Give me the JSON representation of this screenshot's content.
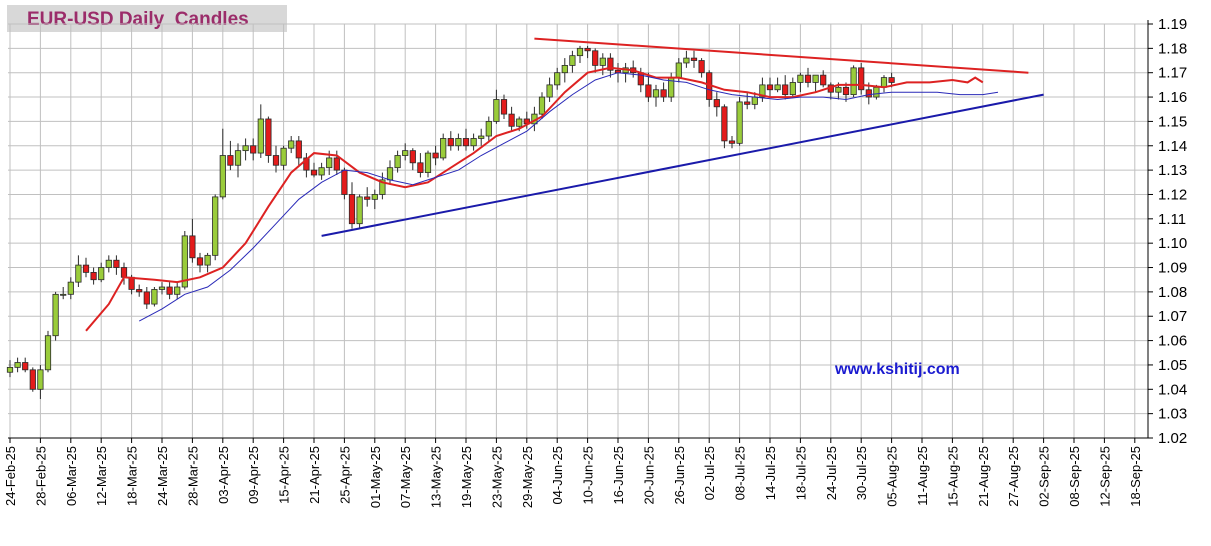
{
  "chart_data": {
    "type": "candlestick",
    "title": "EUR-USD Daily  Candles",
    "watermark": "www.kshitij.com",
    "ylim": [
      1.02,
      1.19
    ],
    "y_ticks": [
      "1.19",
      "1.18",
      "1.17",
      "1.16",
      "1.15",
      "1.14",
      "1.13",
      "1.12",
      "1.11",
      "1.10",
      "1.09",
      "1.08",
      "1.07",
      "1.06",
      "1.05",
      "1.04",
      "1.03",
      "1.02"
    ],
    "x_ticks": [
      "24-Feb-25",
      "28-Feb-25",
      "06-Mar-25",
      "12-Mar-25",
      "18-Mar-25",
      "24-Mar-25",
      "28-Mar-25",
      "03-Apr-25",
      "09-Apr-25",
      "15-Apr-25",
      "21-Apr-25",
      "25-Apr-25",
      "01-May-25",
      "07-May-25",
      "13-May-25",
      "19-May-25",
      "23-May-25",
      "29-May-25",
      "04-Jun-25",
      "10-Jun-25",
      "16-Jun-25",
      "20-Jun-25",
      "26-Jun-25",
      "02-Jul-25",
      "08-Jul-25",
      "14-Jul-25",
      "18-Jul-25",
      "24-Jul-25",
      "30-Jul-25",
      "05-Aug-25",
      "11-Aug-25",
      "15-Aug-25",
      "21-Aug-25",
      "27-Aug-25",
      "02-Sep-25",
      "08-Sep-25",
      "12-Sep-25",
      "18-Sep-25"
    ],
    "x_tick_index_step": 4,
    "grid": true,
    "candles": [
      [
        1.047,
        1.052,
        1.045,
        1.049
      ],
      [
        1.049,
        1.053,
        1.047,
        1.051
      ],
      [
        1.051,
        1.053,
        1.047,
        1.048
      ],
      [
        1.048,
        1.049,
        1.039,
        1.04
      ],
      [
        1.04,
        1.05,
        1.036,
        1.048
      ],
      [
        1.048,
        1.064,
        1.047,
        1.062
      ],
      [
        1.062,
        1.08,
        1.06,
        1.079
      ],
      [
        1.079,
        1.082,
        1.077,
        1.079
      ],
      [
        1.079,
        1.086,
        1.077,
        1.084
      ],
      [
        1.084,
        1.095,
        1.082,
        1.091
      ],
      [
        1.091,
        1.094,
        1.086,
        1.088
      ],
      [
        1.088,
        1.09,
        1.083,
        1.085
      ],
      [
        1.085,
        1.092,
        1.084,
        1.09
      ],
      [
        1.09,
        1.095,
        1.088,
        1.093
      ],
      [
        1.093,
        1.095,
        1.087,
        1.09
      ],
      [
        1.09,
        1.092,
        1.083,
        1.086
      ],
      [
        1.086,
        1.087,
        1.079,
        1.081
      ],
      [
        1.081,
        1.083,
        1.078,
        1.08
      ],
      [
        1.08,
        1.082,
        1.073,
        1.075
      ],
      [
        1.075,
        1.082,
        1.074,
        1.081
      ],
      [
        1.081,
        1.084,
        1.079,
        1.082
      ],
      [
        1.082,
        1.084,
        1.077,
        1.079
      ],
      [
        1.079,
        1.084,
        1.077,
        1.082
      ],
      [
        1.082,
        1.105,
        1.081,
        1.103
      ],
      [
        1.103,
        1.11,
        1.092,
        1.094
      ],
      [
        1.094,
        1.096,
        1.088,
        1.091
      ],
      [
        1.091,
        1.096,
        1.088,
        1.095
      ],
      [
        1.095,
        1.12,
        1.093,
        1.119
      ],
      [
        1.119,
        1.147,
        1.118,
        1.136
      ],
      [
        1.136,
        1.142,
        1.13,
        1.132
      ],
      [
        1.132,
        1.141,
        1.127,
        1.138
      ],
      [
        1.138,
        1.143,
        1.134,
        1.14
      ],
      [
        1.14,
        1.143,
        1.134,
        1.137
      ],
      [
        1.137,
        1.157,
        1.135,
        1.151
      ],
      [
        1.151,
        1.152,
        1.133,
        1.136
      ],
      [
        1.136,
        1.14,
        1.129,
        1.132
      ],
      [
        1.132,
        1.14,
        1.13,
        1.139
      ],
      [
        1.139,
        1.144,
        1.137,
        1.142
      ],
      [
        1.142,
        1.144,
        1.132,
        1.135
      ],
      [
        1.135,
        1.137,
        1.127,
        1.13
      ],
      [
        1.13,
        1.133,
        1.127,
        1.128
      ],
      [
        1.128,
        1.133,
        1.126,
        1.131
      ],
      [
        1.131,
        1.138,
        1.128,
        1.135
      ],
      [
        1.135,
        1.138,
        1.128,
        1.13
      ],
      [
        1.13,
        1.131,
        1.118,
        1.12
      ],
      [
        1.12,
        1.125,
        1.106,
        1.108
      ],
      [
        1.108,
        1.12,
        1.106,
        1.119
      ],
      [
        1.119,
        1.123,
        1.115,
        1.118
      ],
      [
        1.118,
        1.122,
        1.114,
        1.12
      ],
      [
        1.12,
        1.129,
        1.118,
        1.126
      ],
      [
        1.126,
        1.134,
        1.124,
        1.131
      ],
      [
        1.131,
        1.138,
        1.129,
        1.136
      ],
      [
        1.136,
        1.141,
        1.134,
        1.138
      ],
      [
        1.138,
        1.139,
        1.13,
        1.133
      ],
      [
        1.133,
        1.137,
        1.127,
        1.129
      ],
      [
        1.129,
        1.138,
        1.127,
        1.137
      ],
      [
        1.137,
        1.14,
        1.132,
        1.135
      ],
      [
        1.135,
        1.145,
        1.134,
        1.143
      ],
      [
        1.143,
        1.146,
        1.138,
        1.14
      ],
      [
        1.14,
        1.145,
        1.138,
        1.143
      ],
      [
        1.143,
        1.147,
        1.138,
        1.14
      ],
      [
        1.14,
        1.145,
        1.138,
        1.143
      ],
      [
        1.143,
        1.147,
        1.14,
        1.144
      ],
      [
        1.144,
        1.152,
        1.142,
        1.15
      ],
      [
        1.15,
        1.163,
        1.149,
        1.159
      ],
      [
        1.159,
        1.161,
        1.151,
        1.153
      ],
      [
        1.153,
        1.156,
        1.146,
        1.148
      ],
      [
        1.148,
        1.152,
        1.146,
        1.151
      ],
      [
        1.151,
        1.154,
        1.147,
        1.149
      ],
      [
        1.149,
        1.156,
        1.146,
        1.153
      ],
      [
        1.153,
        1.162,
        1.151,
        1.16
      ],
      [
        1.16,
        1.168,
        1.158,
        1.165
      ],
      [
        1.165,
        1.172,
        1.163,
        1.17
      ],
      [
        1.17,
        1.176,
        1.166,
        1.173
      ],
      [
        1.173,
        1.179,
        1.17,
        1.177
      ],
      [
        1.177,
        1.181,
        1.174,
        1.18
      ],
      [
        1.18,
        1.181,
        1.176,
        1.179
      ],
      [
        1.179,
        1.18,
        1.17,
        1.173
      ],
      [
        1.173,
        1.178,
        1.169,
        1.176
      ],
      [
        1.176,
        1.178,
        1.168,
        1.171
      ],
      [
        1.171,
        1.174,
        1.166,
        1.17
      ],
      [
        1.17,
        1.174,
        1.166,
        1.172
      ],
      [
        1.172,
        1.175,
        1.168,
        1.17
      ],
      [
        1.17,
        1.172,
        1.162,
        1.165
      ],
      [
        1.165,
        1.17,
        1.158,
        1.16
      ],
      [
        1.16,
        1.165,
        1.156,
        1.163
      ],
      [
        1.163,
        1.166,
        1.158,
        1.16
      ],
      [
        1.16,
        1.17,
        1.158,
        1.168
      ],
      [
        1.168,
        1.176,
        1.166,
        1.174
      ],
      [
        1.174,
        1.179,
        1.172,
        1.176
      ],
      [
        1.176,
        1.179,
        1.172,
        1.175
      ],
      [
        1.175,
        1.176,
        1.168,
        1.17
      ],
      [
        1.17,
        1.171,
        1.156,
        1.159
      ],
      [
        1.159,
        1.162,
        1.152,
        1.156
      ],
      [
        1.156,
        1.157,
        1.139,
        1.142
      ],
      [
        1.142,
        1.144,
        1.139,
        1.141
      ],
      [
        1.141,
        1.16,
        1.14,
        1.158
      ],
      [
        1.158,
        1.162,
        1.155,
        1.157
      ],
      [
        1.157,
        1.162,
        1.155,
        1.16
      ],
      [
        1.16,
        1.168,
        1.158,
        1.165
      ],
      [
        1.165,
        1.168,
        1.16,
        1.163
      ],
      [
        1.163,
        1.168,
        1.162,
        1.165
      ],
      [
        1.165,
        1.169,
        1.159,
        1.161
      ],
      [
        1.161,
        1.168,
        1.16,
        1.166
      ],
      [
        1.166,
        1.17,
        1.162,
        1.169
      ],
      [
        1.169,
        1.172,
        1.164,
        1.166
      ],
      [
        1.166,
        1.169,
        1.162,
        1.169
      ],
      [
        1.169,
        1.171,
        1.164,
        1.165
      ],
      [
        1.165,
        1.166,
        1.159,
        1.162
      ],
      [
        1.162,
        1.166,
        1.159,
        1.164
      ],
      [
        1.164,
        1.166,
        1.158,
        1.161
      ],
      [
        1.161,
        1.173,
        1.16,
        1.172
      ],
      [
        1.172,
        1.174,
        1.161,
        1.163
      ],
      [
        1.163,
        1.166,
        1.157,
        1.16
      ],
      [
        1.16,
        1.165,
        1.159,
        1.164
      ],
      [
        1.164,
        1.169,
        1.162,
        1.168
      ],
      [
        1.168,
        1.17,
        1.164,
        1.166
      ]
    ],
    "series": [
      {
        "color": "#dd2222",
        "values": [
          [
            10,
            1.064
          ],
          [
            13,
            1.075
          ],
          [
            15,
            1.086
          ],
          [
            19,
            1.085
          ],
          [
            22,
            1.084
          ],
          [
            25,
            1.086
          ],
          [
            28,
            1.09
          ],
          [
            31,
            1.1
          ],
          [
            34,
            1.115
          ],
          [
            37,
            1.129
          ],
          [
            40,
            1.137
          ],
          [
            43,
            1.136
          ],
          [
            46,
            1.129
          ],
          [
            49,
            1.125
          ],
          [
            52,
            1.123
          ],
          [
            55,
            1.125
          ],
          [
            58,
            1.131
          ],
          [
            61,
            1.137
          ],
          [
            64,
            1.144
          ],
          [
            67,
            1.147
          ],
          [
            70,
            1.152
          ],
          [
            73,
            1.162
          ],
          [
            76,
            1.17
          ],
          [
            79,
            1.172
          ],
          [
            82,
            1.171
          ],
          [
            85,
            1.168
          ],
          [
            88,
            1.168
          ],
          [
            91,
            1.166
          ],
          [
            94,
            1.163
          ],
          [
            97,
            1.162
          ],
          [
            100,
            1.16
          ],
          [
            103,
            1.16
          ],
          [
            106,
            1.162
          ],
          [
            109,
            1.165
          ],
          [
            112,
            1.165
          ],
          [
            115,
            1.164
          ],
          [
            118,
            1.166
          ],
          [
            121,
            1.166
          ],
          [
            124,
            1.167
          ],
          [
            126,
            1.166
          ],
          [
            127,
            1.168
          ],
          [
            128,
            1.166
          ]
        ]
      },
      {
        "color": "#2a2ab8",
        "values": [
          [
            17,
            1.068
          ],
          [
            20,
            1.073
          ],
          [
            23,
            1.079
          ],
          [
            26,
            1.082
          ],
          [
            29,
            1.089
          ],
          [
            32,
            1.098
          ],
          [
            35,
            1.108
          ],
          [
            38,
            1.118
          ],
          [
            41,
            1.125
          ],
          [
            44,
            1.13
          ],
          [
            47,
            1.129
          ],
          [
            50,
            1.126
          ],
          [
            53,
            1.124
          ],
          [
            56,
            1.127
          ],
          [
            59,
            1.13
          ],
          [
            62,
            1.136
          ],
          [
            65,
            1.141
          ],
          [
            68,
            1.146
          ],
          [
            71,
            1.154
          ],
          [
            74,
            1.161
          ],
          [
            77,
            1.167
          ],
          [
            80,
            1.17
          ],
          [
            83,
            1.169
          ],
          [
            86,
            1.167
          ],
          [
            89,
            1.166
          ],
          [
            92,
            1.163
          ],
          [
            95,
            1.161
          ],
          [
            98,
            1.16
          ],
          [
            101,
            1.159
          ],
          [
            104,
            1.16
          ],
          [
            107,
            1.16
          ],
          [
            110,
            1.159
          ],
          [
            113,
            1.161
          ],
          [
            116,
            1.162
          ],
          [
            119,
            1.162
          ],
          [
            122,
            1.162
          ],
          [
            125,
            1.161
          ],
          [
            128,
            1.161
          ],
          [
            130,
            1.162
          ]
        ]
      }
    ],
    "trendlines": [
      {
        "color": "#dd2222",
        "from": [
          69,
          1.184
        ],
        "to": [
          134,
          1.17
        ]
      },
      {
        "color": "#1a1aaa",
        "from": [
          41,
          1.103
        ],
        "to": [
          136,
          1.161
        ]
      }
    ],
    "colors": {
      "up": "#9acc3b",
      "down": "#e31b1b",
      "outline": "#2a2a2a",
      "grid": "#c0c0c0"
    }
  }
}
